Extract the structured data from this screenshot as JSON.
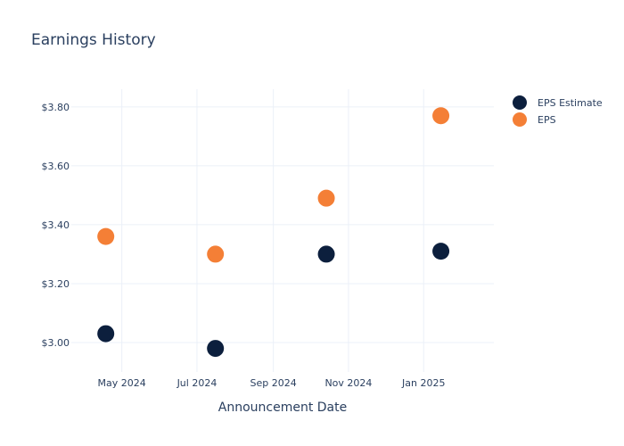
{
  "chart_data": {
    "type": "scatter",
    "title": "Earnings History",
    "xlabel": "Announcement Date",
    "ylabel": "",
    "x": [
      "2024-04-18",
      "2024-07-16",
      "2024-10-14",
      "2025-01-15"
    ],
    "series": [
      {
        "name": "EPS Estimate",
        "color": "#0c1f3d",
        "values": [
          3.03,
          2.98,
          3.3,
          3.31
        ]
      },
      {
        "name": "EPS",
        "color": "#f47f36",
        "values": [
          3.36,
          3.3,
          3.49,
          3.77
        ]
      }
    ],
    "xlim": [
      "2024-03-21",
      "2025-02-27"
    ],
    "ylim": [
      2.9,
      3.86
    ],
    "x_ticks": [
      {
        "date": "2024-05-01",
        "label": "May 2024"
      },
      {
        "date": "2024-07-01",
        "label": "Jul 2024"
      },
      {
        "date": "2024-09-01",
        "label": "Sep 2024"
      },
      {
        "date": "2024-11-01",
        "label": "Nov 2024"
      },
      {
        "date": "2025-01-01",
        "label": "Jan 2025"
      }
    ],
    "y_ticks": [
      {
        "value": 3.0,
        "label": "$3.00"
      },
      {
        "value": 3.2,
        "label": "$3.20"
      },
      {
        "value": 3.4,
        "label": "$3.40"
      },
      {
        "value": 3.6,
        "label": "$3.60"
      },
      {
        "value": 3.8,
        "label": "$3.80"
      }
    ],
    "grid": true,
    "legend_position": "top-right"
  }
}
